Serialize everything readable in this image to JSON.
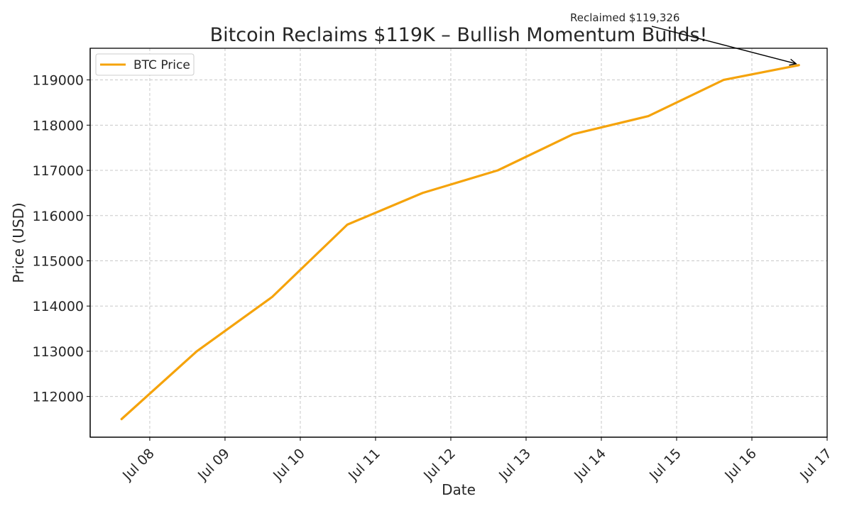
{
  "chart_data": {
    "type": "line",
    "title": "Bitcoin Reclaims $119K – Bullish Momentum Builds!",
    "xlabel": "Date",
    "ylabel": "Price (USD)",
    "x_tick_labels": [
      "Jul 08",
      "Jul 09",
      "Jul 10",
      "Jul 11",
      "Jul 12",
      "Jul 13",
      "Jul 14",
      "Jul 15",
      "Jul 16",
      "Jul 17"
    ],
    "y_ticks": [
      112000,
      113000,
      114000,
      115000,
      116000,
      117000,
      118000,
      119000
    ],
    "xlim": [
      "2025-07-07 05:00",
      "2025-07-17 00:00"
    ],
    "ylim": [
      111100,
      119700
    ],
    "grid": true,
    "legend_position": "upper-left",
    "series": [
      {
        "name": "BTC Price",
        "color": "#F5A30B",
        "x": [
          "2025-07-07 15:00",
          "2025-07-08 15:00",
          "2025-07-09 15:00",
          "2025-07-10 15:00",
          "2025-07-11 15:00",
          "2025-07-12 15:00",
          "2025-07-13 15:00",
          "2025-07-14 15:00",
          "2025-07-15 15:00",
          "2025-07-16 15:00"
        ],
        "values": [
          111500,
          113000,
          114200,
          115800,
          116500,
          117000,
          117800,
          118200,
          119000,
          119326
        ]
      }
    ],
    "annotations": [
      {
        "text": "Reclaimed $119,326",
        "target_x": "2025-07-16 15:00",
        "target_y": 119326
      }
    ]
  }
}
